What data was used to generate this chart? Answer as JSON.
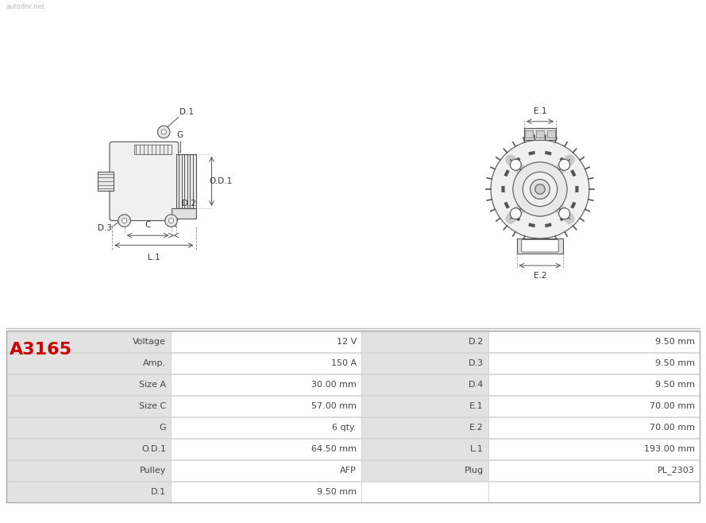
{
  "title": "A3165",
  "title_color": "#cc0000",
  "background_color": "#ffffff",
  "table": {
    "left_col": [
      "Voltage",
      "Amp.",
      "Size A",
      "Size C",
      "G",
      "O.D.1",
      "Pulley",
      "D.1"
    ],
    "left_val": [
      "12 V",
      "150 A",
      "30.00 mm",
      "57.00 mm",
      "6 qty.",
      "64.50 mm",
      "AFP",
      "9.50 mm"
    ],
    "right_col": [
      "D.2",
      "D.3",
      "D.4",
      "E.1",
      "E.2",
      "L.1",
      "Plug",
      ""
    ],
    "right_val": [
      "9.50 mm",
      "9.50 mm",
      "9.50 mm",
      "70.00 mm",
      "70.00 mm",
      "193.00 mm",
      "PL_2303",
      ""
    ]
  },
  "line_color": "#999999",
  "text_color": "#444444"
}
